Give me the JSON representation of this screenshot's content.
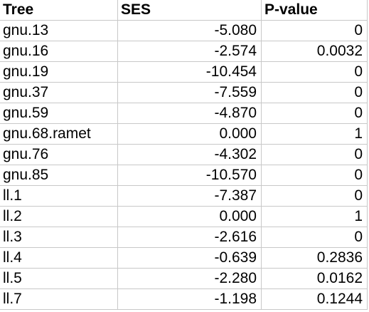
{
  "headers": [
    "Tree",
    "SES",
    "P-value"
  ],
  "rows": [
    {
      "tree": "gnu.13",
      "ses": "-5.080",
      "p": "0"
    },
    {
      "tree": "gnu.16",
      "ses": "-2.574",
      "p": "0.0032"
    },
    {
      "tree": "gnu.19",
      "ses": "-10.454",
      "p": "0"
    },
    {
      "tree": "gnu.37",
      "ses": "-7.559",
      "p": "0"
    },
    {
      "tree": "gnu.59",
      "ses": "-4.870",
      "p": "0"
    },
    {
      "tree": "gnu.68.ramet",
      "ses": "0.000",
      "p": "1"
    },
    {
      "tree": "gnu.76",
      "ses": "-4.302",
      "p": "0"
    },
    {
      "tree": "gnu.85",
      "ses": "-10.570",
      "p": "0"
    },
    {
      "tree": "ll.1",
      "ses": "-7.387",
      "p": "0"
    },
    {
      "tree": "ll.2",
      "ses": "0.000",
      "p": "1"
    },
    {
      "tree": "ll.3",
      "ses": "-2.616",
      "p": "0"
    },
    {
      "tree": "ll.4",
      "ses": "-0.639",
      "p": "0.2836"
    },
    {
      "tree": "ll.5",
      "ses": "-2.280",
      "p": "0.0162"
    },
    {
      "tree": "ll.7",
      "ses": "-1.198",
      "p": "0.1244"
    }
  ]
}
